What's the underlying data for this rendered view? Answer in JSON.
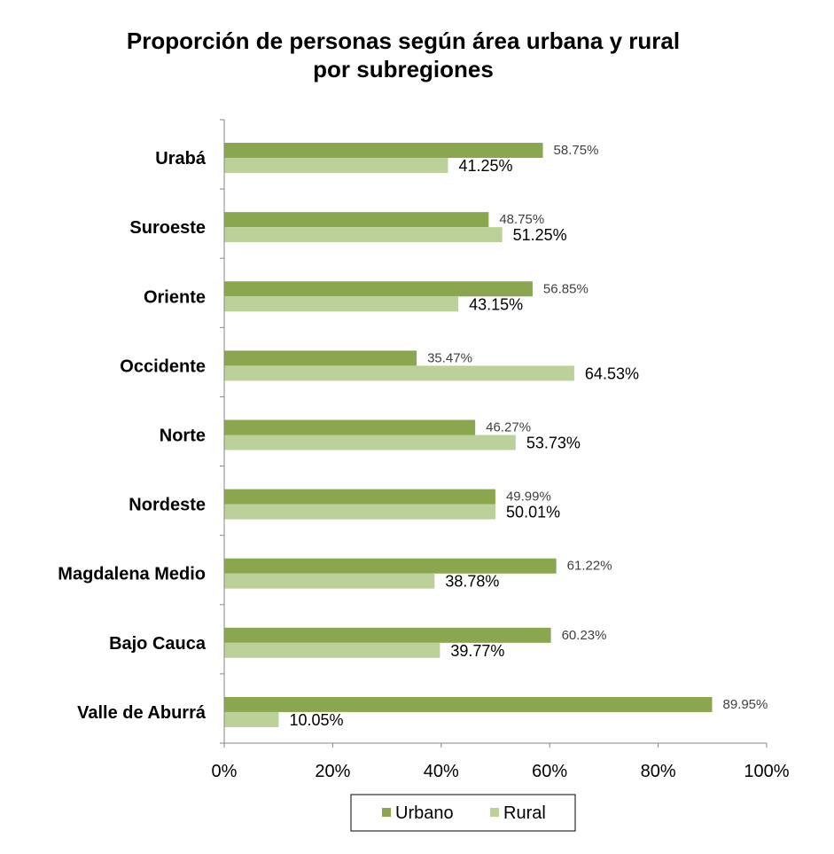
{
  "chart_data": {
    "type": "bar",
    "orientation": "horizontal",
    "title_lines": [
      "Proporción de personas según área urbana y rural",
      "por subregiones"
    ],
    "categories": [
      "Urabá",
      "Suroeste",
      "Oriente",
      "Occidente",
      "Norte",
      "Nordeste",
      "Magdalena Medio",
      "Bajo Cauca",
      "Valle de Aburrá"
    ],
    "series": [
      {
        "name": "Urbano",
        "color": "#8aa64f",
        "values": [
          58.75,
          48.75,
          56.85,
          35.47,
          46.27,
          49.99,
          61.22,
          60.23,
          89.95
        ],
        "labels": [
          "58.75%",
          "48.75%",
          "56.85%",
          "35.47%",
          "46.27%",
          "49.99%",
          "61.22%",
          "60.23%",
          "89.95%"
        ]
      },
      {
        "name": "Rural",
        "color": "#bcd19a",
        "values": [
          41.25,
          51.25,
          43.15,
          64.53,
          53.73,
          50.01,
          38.78,
          39.77,
          10.05
        ],
        "labels": [
          "41.25%",
          "51.25%",
          "43.15%",
          "64.53%",
          "53.73%",
          "50.01%",
          "38.78%",
          "39.77%",
          "10.05%"
        ]
      }
    ],
    "xlim": [
      0,
      100
    ],
    "x_ticks": [
      0,
      20,
      40,
      60,
      80,
      100
    ],
    "x_tick_labels": [
      "0%",
      "20%",
      "40%",
      "60%",
      "80%",
      "100%"
    ],
    "grid": false,
    "legend_position": "bottom"
  }
}
